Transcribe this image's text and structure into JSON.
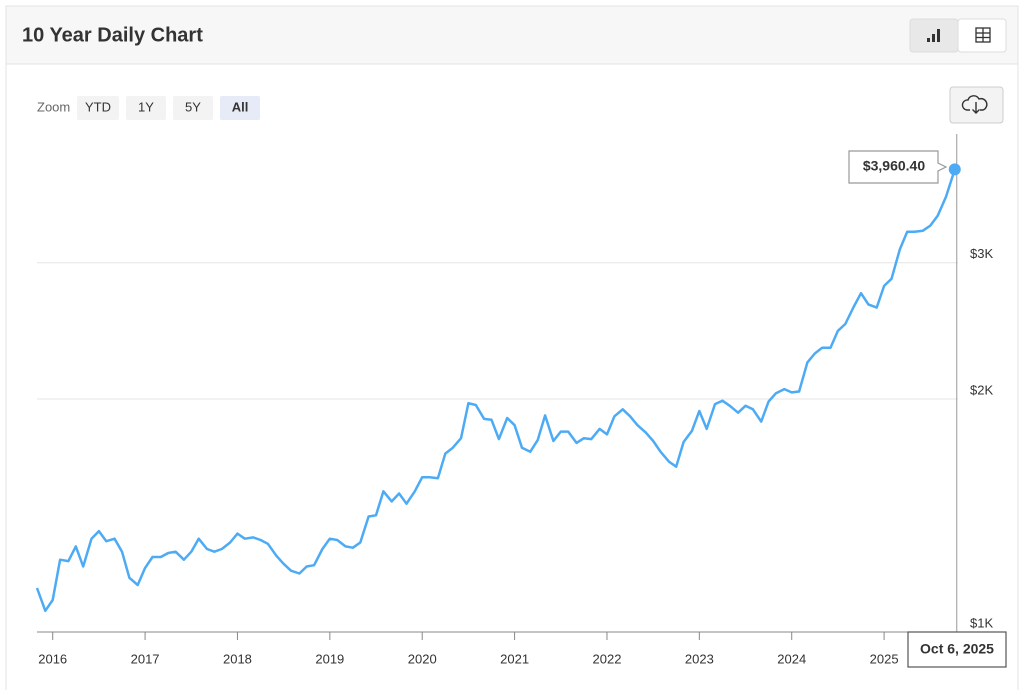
{
  "header": {
    "title": "10 Year Daily Chart"
  },
  "zoom": {
    "label": "Zoom",
    "buttons": [
      "YTD",
      "1Y",
      "5Y",
      "All"
    ],
    "selected": "All"
  },
  "chart_data": {
    "type": "line",
    "color": "#4dabf5",
    "log_scale": true,
    "x": [
      2015.83,
      2015.92,
      2016.0,
      2016.08,
      2016.17,
      2016.25,
      2016.33,
      2016.42,
      2016.5,
      2016.58,
      2016.67,
      2016.75,
      2016.83,
      2016.92,
      2017.0,
      2017.08,
      2017.17,
      2017.25,
      2017.33,
      2017.42,
      2017.5,
      2017.58,
      2017.67,
      2017.75,
      2017.83,
      2017.92,
      2018.0,
      2018.08,
      2018.17,
      2018.25,
      2018.33,
      2018.42,
      2018.5,
      2018.58,
      2018.67,
      2018.75,
      2018.83,
      2018.92,
      2019.0,
      2019.08,
      2019.17,
      2019.25,
      2019.33,
      2019.42,
      2019.5,
      2019.58,
      2019.67,
      2019.75,
      2019.83,
      2019.92,
      2020.0,
      2020.08,
      2020.17,
      2020.25,
      2020.33,
      2020.42,
      2020.5,
      2020.58,
      2020.67,
      2020.75,
      2020.83,
      2020.92,
      2021.0,
      2021.08,
      2021.17,
      2021.25,
      2021.33,
      2021.42,
      2021.5,
      2021.58,
      2021.67,
      2021.75,
      2021.83,
      2021.92,
      2022.0,
      2022.08,
      2022.17,
      2022.25,
      2022.33,
      2022.42,
      2022.5,
      2022.58,
      2022.67,
      2022.75,
      2022.83,
      2022.92,
      2023.0,
      2023.08,
      2023.17,
      2023.25,
      2023.33,
      2023.42,
      2023.5,
      2023.58,
      2023.67,
      2023.75,
      2023.83,
      2023.92,
      2024.0,
      2024.08,
      2024.17,
      2024.25,
      2024.33,
      2024.42,
      2024.5,
      2024.58,
      2024.67,
      2024.75,
      2024.83,
      2024.92,
      2025.0,
      2025.08,
      2025.17,
      2025.25,
      2025.33,
      2025.42,
      2025.5,
      2025.58,
      2025.67,
      2025.765
    ],
    "values": [
      1140,
      1065,
      1100,
      1240,
      1235,
      1290,
      1215,
      1320,
      1350,
      1310,
      1320,
      1270,
      1175,
      1150,
      1210,
      1250,
      1250,
      1265,
      1270,
      1240,
      1270,
      1320,
      1280,
      1270,
      1280,
      1305,
      1340,
      1320,
      1325,
      1315,
      1300,
      1255,
      1225,
      1200,
      1190,
      1215,
      1220,
      1280,
      1320,
      1315,
      1290,
      1285,
      1305,
      1410,
      1415,
      1520,
      1475,
      1510,
      1465,
      1520,
      1585,
      1585,
      1580,
      1700,
      1730,
      1780,
      1975,
      1965,
      1885,
      1880,
      1775,
      1890,
      1850,
      1730,
      1710,
      1770,
      1905,
      1765,
      1815,
      1815,
      1755,
      1780,
      1775,
      1830,
      1800,
      1900,
      1940,
      1900,
      1850,
      1810,
      1765,
      1710,
      1660,
      1635,
      1760,
      1820,
      1930,
      1830,
      1970,
      1990,
      1960,
      1920,
      1960,
      1940,
      1870,
      1985,
      2035,
      2060,
      2040,
      2045,
      2230,
      2290,
      2330,
      2330,
      2450,
      2500,
      2630,
      2740,
      2650,
      2625,
      2800,
      2860,
      3120,
      3290,
      3290,
      3300,
      3350,
      3450,
      3650,
      3960.4
    ],
    "xlim": [
      2015.83,
      2025.8
    ],
    "xticks": [
      2016,
      2017,
      2018,
      2019,
      2020,
      2021,
      2022,
      2023,
      2024,
      2025
    ],
    "ylim": [
      1000,
      4400
    ],
    "yticks": [
      {
        "value": 1000,
        "label": "$1K"
      },
      {
        "value": 2000,
        "label": "$2K"
      },
      {
        "value": 3000,
        "label": "$3K"
      }
    ],
    "grid": true,
    "tooltip": {
      "label": "$3,960.40",
      "date": "Oct 6, 2025"
    }
  }
}
